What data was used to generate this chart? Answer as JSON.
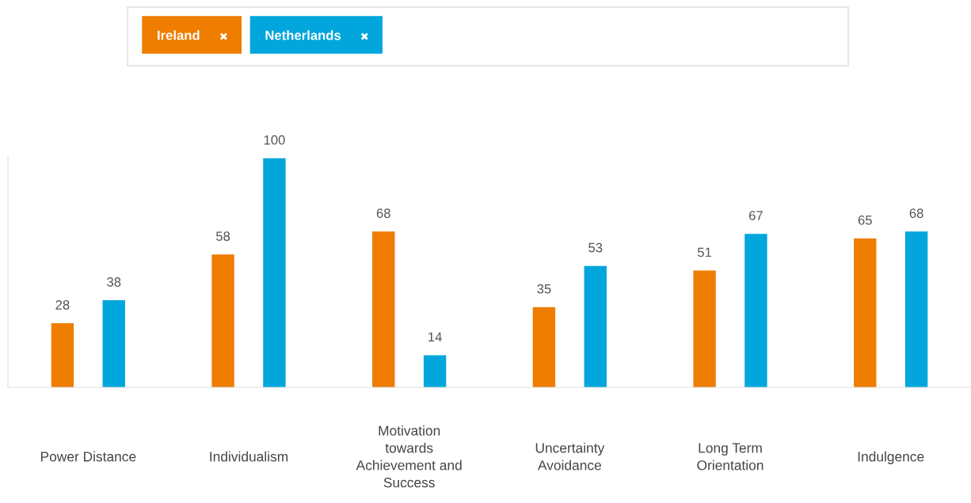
{
  "chart_data": {
    "type": "bar",
    "categories": [
      "Power Distance",
      "Individualism",
      "Motivation towards Achievement and Success",
      "Uncertainty Avoidance",
      "Long Term Orientation",
      "Indulgence"
    ],
    "series": [
      {
        "name": "Ireland",
        "color": "#ef7d00",
        "values": [
          28,
          58,
          68,
          35,
          51,
          65
        ]
      },
      {
        "name": "Netherlands",
        "color": "#00a6dc",
        "values": [
          38,
          100,
          14,
          53,
          67,
          68
        ]
      }
    ],
    "data_labels": true,
    "legend": "top",
    "grid": false
  }
}
